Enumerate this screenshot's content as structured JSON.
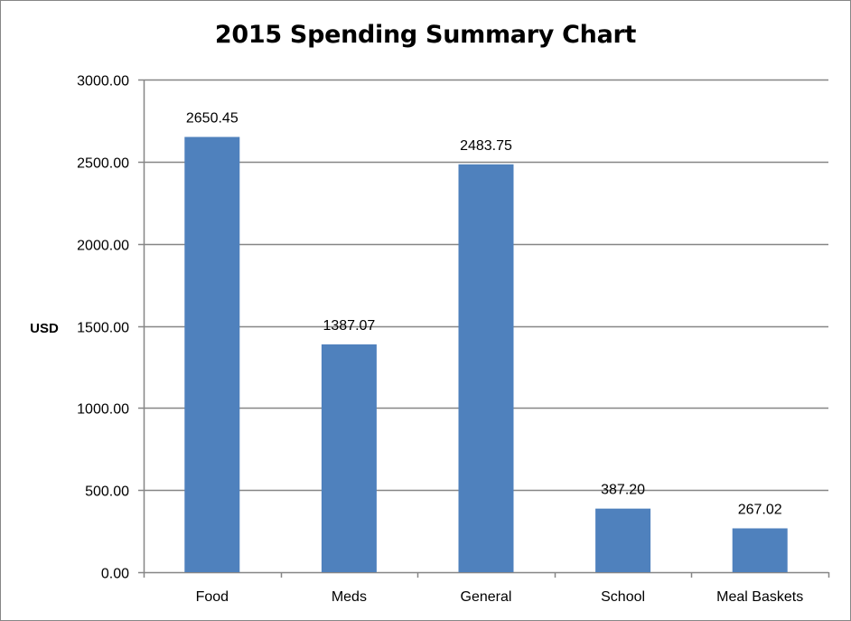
{
  "chart_data": {
    "type": "bar",
    "title": "2015 Spending Summary Chart",
    "ylabel": "USD",
    "xlabel": "",
    "categories": [
      "Food",
      "Meds",
      "General",
      "School",
      "Meal Baskets"
    ],
    "values": [
      2650.45,
      1387.07,
      2483.75,
      387.2,
      267.02
    ],
    "value_labels": [
      "2650.45",
      "1387.07",
      "2483.75",
      "387.20",
      "267.02"
    ],
    "ylim": [
      0,
      3000
    ],
    "yticks": [
      0,
      500,
      1000,
      1500,
      2000,
      2500,
      3000
    ],
    "ytick_labels": [
      "0.00",
      "500.00",
      "1000.00",
      "1500.00",
      "2000.00",
      "2500.00",
      "3000.00"
    ],
    "grid": true,
    "legend": "none",
    "colors": {
      "bar": "#4F81BD",
      "grid": "#868686",
      "axis": "#868686"
    }
  }
}
